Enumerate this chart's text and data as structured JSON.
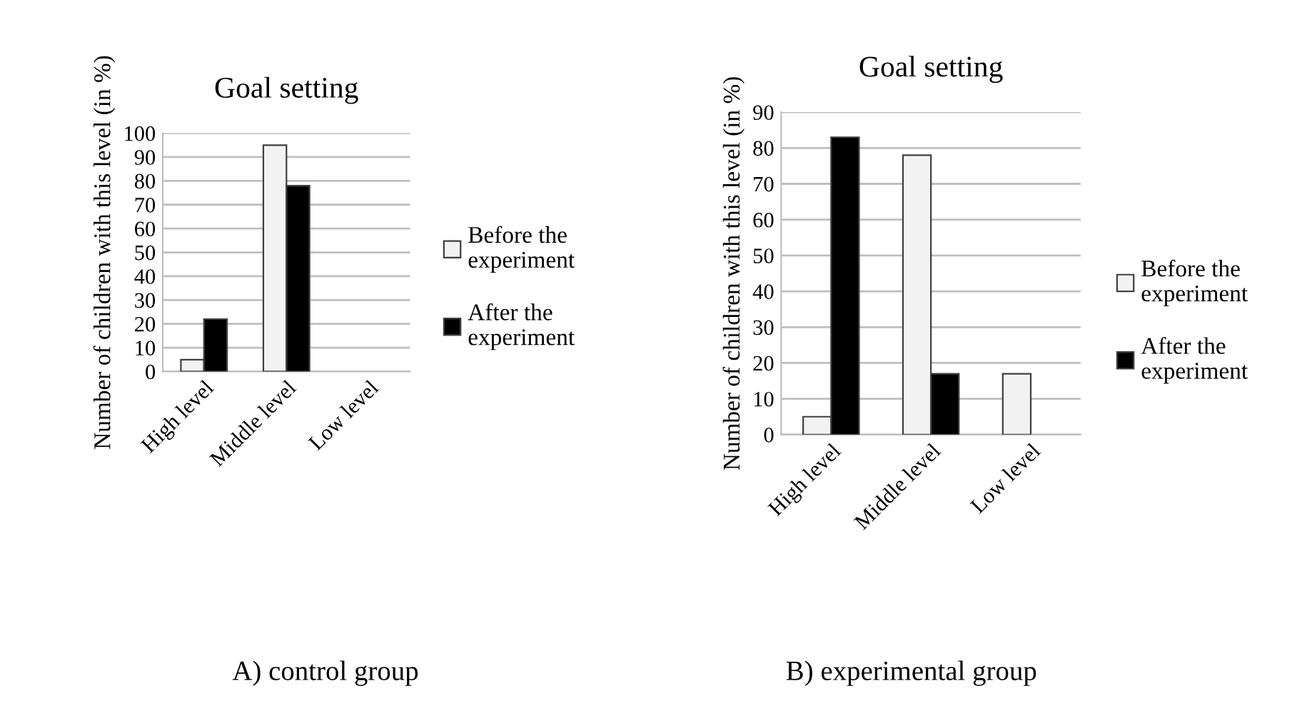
{
  "chart_data": [
    {
      "type": "bar",
      "title": "Goal setting",
      "ylabel": "Number of children with this level (in %)",
      "categories": [
        "High level",
        "Middle level",
        "Low level"
      ],
      "series": [
        {
          "name": "Before the\nexperiment",
          "color": "#f2f2f2",
          "values": [
            5,
            95,
            null
          ]
        },
        {
          "name": "After the\nexperiment",
          "color": "#000000",
          "values": [
            22,
            78,
            null
          ]
        }
      ],
      "ylim": [
        0,
        100
      ],
      "yticks": [
        0,
        10,
        20,
        30,
        40,
        50,
        60,
        70,
        80,
        90,
        100
      ],
      "grid": "y",
      "legend": "right",
      "annotations": [
        "A) control group"
      ]
    },
    {
      "type": "bar",
      "title": "Goal setting",
      "ylabel": "Number of children with this level (in %)",
      "categories": [
        "High level",
        "Middle level",
        "Low level"
      ],
      "series": [
        {
          "name": "Before the\nexperiment",
          "color": "#f2f2f2",
          "values": [
            5,
            78,
            17
          ]
        },
        {
          "name": "After the\nexperiment",
          "color": "#000000",
          "values": [
            83,
            17,
            null
          ]
        }
      ],
      "ylim": [
        0,
        90
      ],
      "yticks": [
        0,
        10,
        20,
        30,
        40,
        50,
        60,
        70,
        80,
        90
      ],
      "grid": "y",
      "legend": "right",
      "annotations": [
        "B) experimental group"
      ]
    }
  ]
}
